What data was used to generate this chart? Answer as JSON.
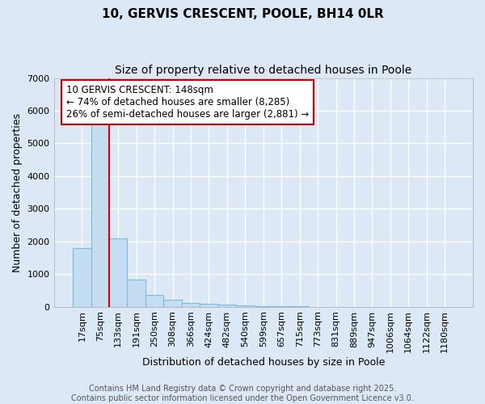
{
  "title": "10, GERVIS CRESCENT, POOLE, BH14 0LR",
  "subtitle": "Size of property relative to detached houses in Poole",
  "xlabel": "Distribution of detached houses by size in Poole",
  "ylabel": "Number of detached properties",
  "bar_labels": [
    "17sqm",
    "75sqm",
    "133sqm",
    "191sqm",
    "250sqm",
    "308sqm",
    "366sqm",
    "424sqm",
    "482sqm",
    "540sqm",
    "599sqm",
    "657sqm",
    "715sqm",
    "773sqm",
    "831sqm",
    "889sqm",
    "947sqm",
    "1006sqm",
    "1064sqm",
    "1122sqm",
    "1180sqm"
  ],
  "bar_values": [
    1800,
    5800,
    2100,
    830,
    350,
    200,
    120,
    80,
    70,
    40,
    20,
    10,
    5,
    2,
    1,
    1,
    1,
    0,
    0,
    0,
    0
  ],
  "bar_color": "#c5ddf0",
  "bar_edge_color": "#7fb8e0",
  "red_line_index": 2,
  "red_line_color": "#cc0000",
  "annotation_line1": "10 GERVIS CRESCENT: 148sqm",
  "annotation_line2": "← 74% of detached houses are smaller (8,285)",
  "annotation_line3": "26% of semi-detached houses are larger (2,881) →",
  "annotation_box_color": "#ffffff",
  "annotation_box_edge_color": "#cc0000",
  "ylim": [
    0,
    7000
  ],
  "background_color": "#dce8f5",
  "plot_bg_color": "#dce8f5",
  "grid_color": "#ffffff",
  "footer_text": "Contains HM Land Registry data © Crown copyright and database right 2025.\nContains public sector information licensed under the Open Government Licence v3.0.",
  "title_fontsize": 11,
  "subtitle_fontsize": 10,
  "axis_label_fontsize": 9,
  "tick_fontsize": 8,
  "annotation_fontsize": 8.5,
  "footer_fontsize": 7
}
